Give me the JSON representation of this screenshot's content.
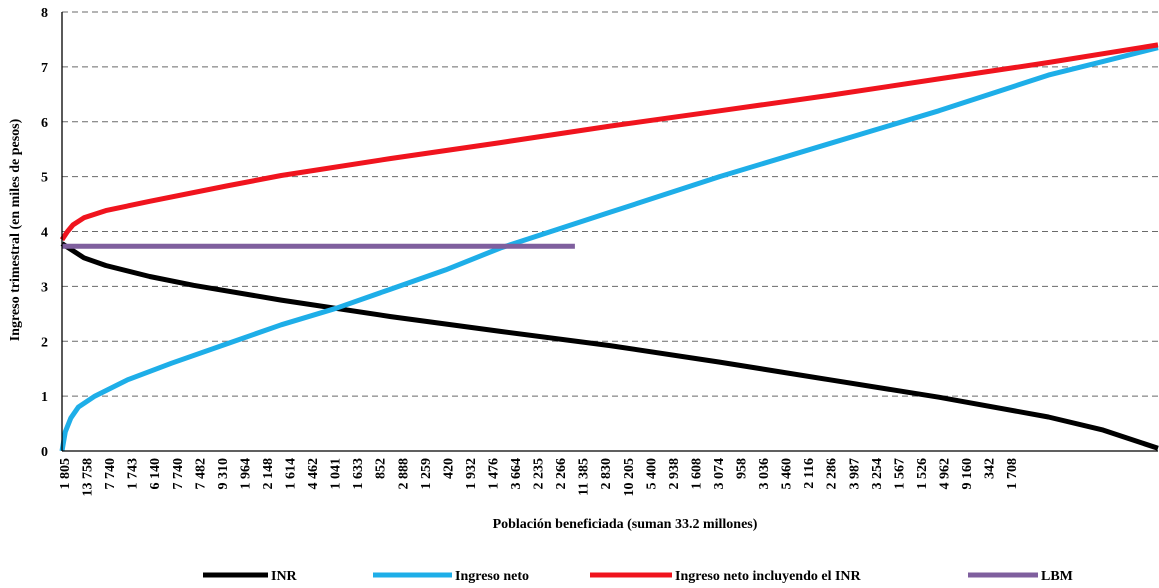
{
  "chart_data": {
    "type": "line",
    "title": "",
    "xlabel": "Población  beneficiada (suman 33.2 millones)",
    "ylabel": "Ingreso trimestral  (en miles de pesos)",
    "ylim": [
      0,
      8
    ],
    "yticks": [
      "0",
      "1",
      "2",
      "3",
      "4",
      "5",
      "6",
      "7",
      "8"
    ],
    "categories": [
      "1 805",
      "13 758",
      "7 740",
      "1 743",
      "6 140",
      "7 740",
      "7 482",
      "9 310",
      "1 964",
      "2 148",
      "1 614",
      "4 462",
      "1 041",
      "1 633",
      "852",
      "2 888",
      "1 259",
      "420",
      "1 932",
      "1 476",
      "3 664",
      "2 235",
      "2 266",
      "11 385",
      "2 830",
      "10 205",
      "5 400",
      "2 938",
      "1 608",
      "3 074",
      "958",
      "3 036",
      "5 460",
      "2 116",
      "2 286",
      "3 987",
      "3 254",
      "1 567",
      "1 526",
      "4 962",
      "9 160",
      "342",
      "1 708"
    ],
    "grid": "horizontal dashed",
    "legend_position": "bottom",
    "series": [
      {
        "name": "INR",
        "color": "#000000",
        "x": [
          0.0,
          0.02,
          0.04,
          0.08,
          0.12,
          0.2,
          0.3,
          0.4,
          0.5,
          0.6,
          0.7,
          0.8,
          0.9,
          0.95,
          1.0
        ],
        "y": [
          3.78,
          3.52,
          3.38,
          3.18,
          3.02,
          2.75,
          2.45,
          2.18,
          1.92,
          1.62,
          1.3,
          0.98,
          0.62,
          0.38,
          0.05
        ]
      },
      {
        "name": "Ingreso neto",
        "color": "#1EAEE8",
        "x": [
          0.0,
          0.003,
          0.008,
          0.015,
          0.03,
          0.06,
          0.1,
          0.15,
          0.2,
          0.25,
          0.3,
          0.35,
          0.4,
          0.5,
          0.6,
          0.7,
          0.8,
          0.9,
          0.95,
          1.0
        ],
        "y": [
          0.0,
          0.35,
          0.6,
          0.8,
          1.0,
          1.3,
          1.6,
          1.95,
          2.3,
          2.6,
          2.95,
          3.3,
          3.7,
          4.35,
          5.0,
          5.6,
          6.2,
          6.85,
          7.1,
          7.35
        ]
      },
      {
        "name": "Ingreso neto incluyendo  el INR",
        "color": "#F0141E",
        "x": [
          0.0,
          0.005,
          0.01,
          0.02,
          0.04,
          0.08,
          0.15,
          0.2,
          0.3,
          0.4,
          0.5,
          0.6,
          0.7,
          0.8,
          0.9,
          1.0
        ],
        "y": [
          3.85,
          4.0,
          4.12,
          4.25,
          4.38,
          4.55,
          4.83,
          5.02,
          5.33,
          5.62,
          5.92,
          6.2,
          6.48,
          6.78,
          7.08,
          7.4
        ]
      },
      {
        "name": "LBM",
        "color": "#7F5F9E",
        "x": [
          0.0,
          0.468
        ],
        "y": [
          3.73,
          3.73
        ]
      }
    ]
  }
}
